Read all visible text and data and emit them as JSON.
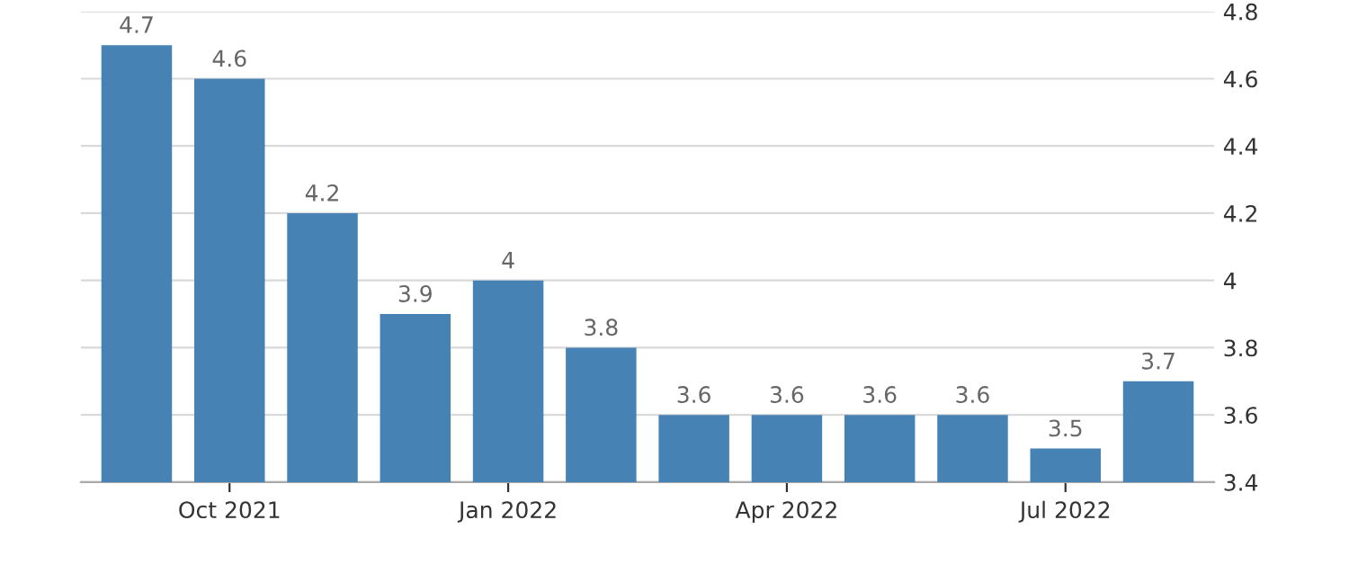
{
  "chart_data": {
    "type": "bar",
    "categories": [
      null,
      "Oct 2021",
      null,
      null,
      "Jan 2022",
      null,
      null,
      "Apr 2022",
      null,
      null,
      "Jul 2022",
      null
    ],
    "values": [
      4.7,
      4.6,
      4.2,
      3.9,
      4,
      3.8,
      3.6,
      3.6,
      3.6,
      3.6,
      3.5,
      3.7
    ],
    "color": "#4682b4",
    "ylim": [
      3.4,
      4.8
    ],
    "yticks": [
      3.4,
      3.6,
      3.8,
      4,
      4.2,
      4.4,
      4.6,
      4.8
    ],
    "grid": "y",
    "data_labels": true
  }
}
